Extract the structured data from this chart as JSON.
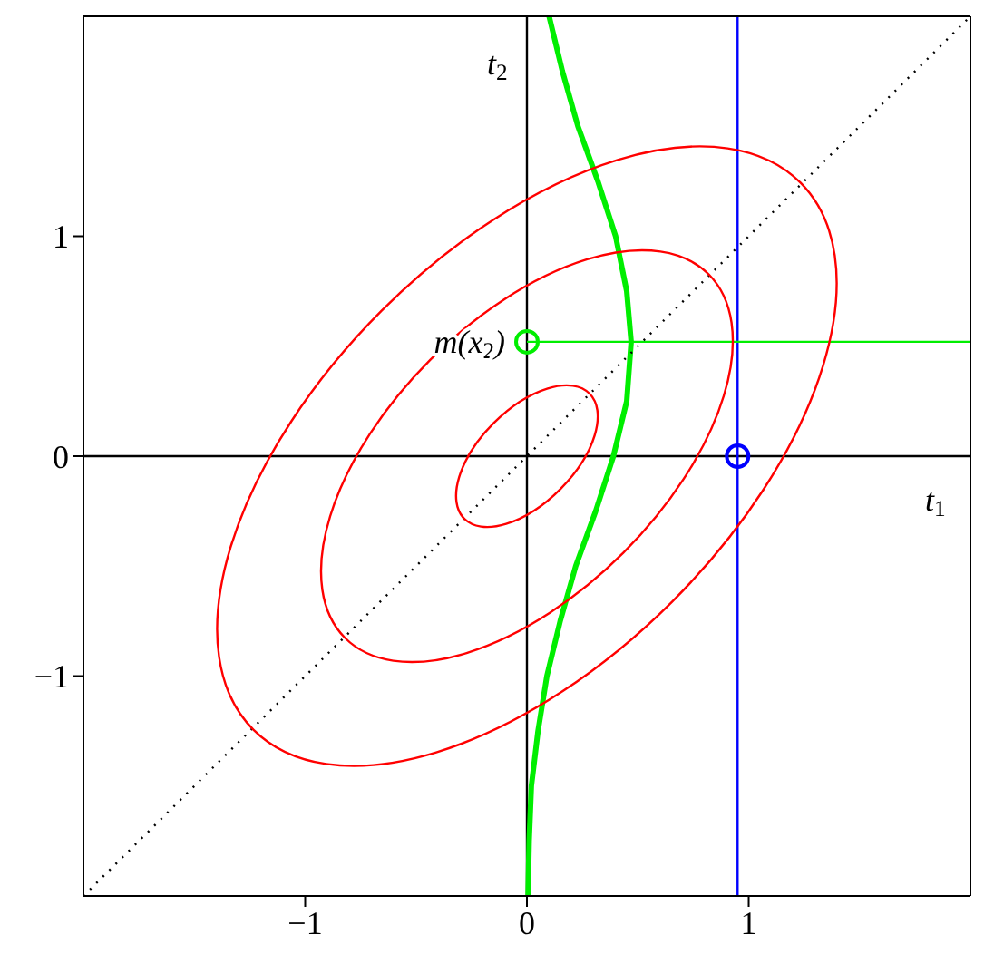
{
  "chart_data": {
    "type": "line",
    "xlabel": "t$_{1}$",
    "ylabel": "t$_{2}$",
    "xlim": [
      -2,
      2
    ],
    "ylim": [
      -2,
      2
    ],
    "xticks": [
      {
        "value": -1,
        "label": "−1"
      },
      0,
      1
    ],
    "yticks": [
      {
        "value": -1,
        "label": "−1"
      },
      0,
      1
    ],
    "grid": false,
    "marker": "none",
    "line_style": "solid",
    "annotations": [
      {
        "text": "m(x$_{2}$)",
        "x": 0,
        "y": 0.52
      }
    ],
    "ref_lines": [
      {
        "axis": "x",
        "value": 0,
        "color": "#000000"
      },
      {
        "axis": "y",
        "value": 0,
        "color": "#000000"
      },
      {
        "axis": "x",
        "value": 0.95,
        "color": "#0000ff"
      }
    ],
    "series": [
      {
        "color": "#00ee00",
        "x": [
          0.005,
          0.01,
          0.02,
          0.05,
          0.09,
          0.15,
          0.22,
          0.31,
          0.39,
          0.45,
          0.47,
          0.45,
          0.4,
          0.32,
          0.23,
          0.16,
          0.1
        ],
        "values": [
          -2,
          -1.75,
          -1.5,
          -1.25,
          -1,
          -0.75,
          -0.5,
          -0.25,
          0,
          0.25,
          0.52,
          0.75,
          1,
          1.25,
          1.5,
          1.75,
          2
        ]
      },
      {
        "color": "#00ee00",
        "x": [
          0,
          2
        ],
        "values": [
          0.52,
          0.52
        ]
      },
      {
        "color": "#000000",
        "line_style": "dotted",
        "x": [
          -2,
          2
        ],
        "values": [
          -2,
          2
        ]
      },
      {
        "type": "scatter",
        "color": "#00ee00",
        "marker": "circle",
        "x": [
          0
        ],
        "values": [
          0.52
        ]
      },
      {
        "type": "scatter",
        "color": "#0000ff",
        "marker": "circle",
        "x": [
          0.95
        ],
        "values": [
          0
        ]
      }
    ]
  }
}
